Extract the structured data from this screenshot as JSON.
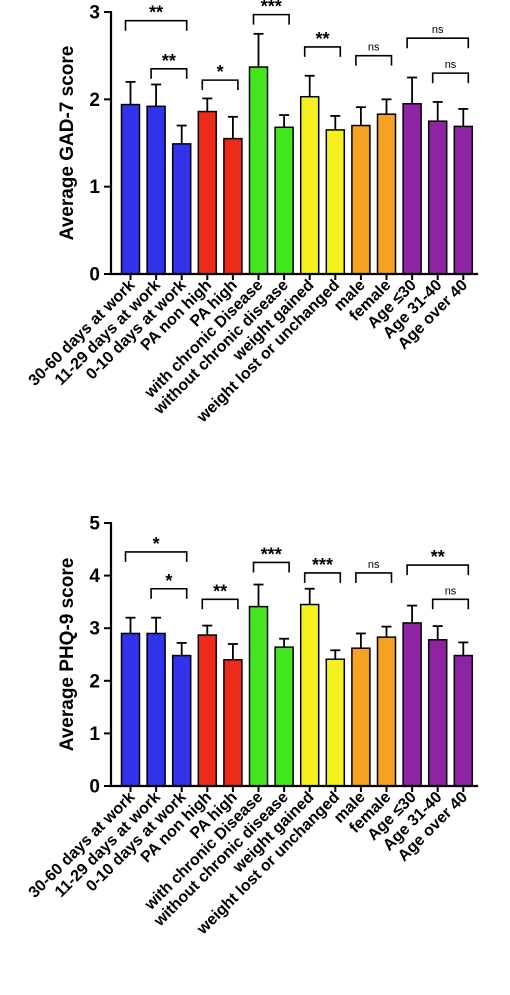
{
  "chart_data": [
    {
      "type": "bar",
      "ylabel": "Average GAD-7 score",
      "ylim": [
        0,
        3
      ],
      "yticks": [
        "0",
        "1",
        "2",
        "3"
      ],
      "categories": [
        "30-60 days at work",
        "11-29 days at work",
        "0-10 days at work",
        "PA non high",
        "PA high",
        "with chronic Disease",
        "without chronic disease",
        "weight gained",
        "weight lost or unchanged",
        "male",
        "female",
        "Age ≤30",
        "Age 31-40",
        "Age over 40"
      ],
      "values": [
        1.94,
        1.92,
        1.49,
        1.86,
        1.55,
        2.37,
        1.68,
        2.03,
        1.65,
        1.7,
        1.83,
        1.95,
        1.75,
        1.69
      ],
      "errors": [
        0.26,
        0.25,
        0.21,
        0.15,
        0.25,
        0.38,
        0.14,
        0.24,
        0.16,
        0.21,
        0.17,
        0.3,
        0.22,
        0.2
      ],
      "colors": [
        "#3333ee",
        "#3333ee",
        "#3333ee",
        "#ee2a1a",
        "#ee2a1a",
        "#44e71f",
        "#44e71f",
        "#f5f020",
        "#f5f020",
        "#f7a123",
        "#f7a123",
        "#8e24a3",
        "#8e24a3",
        "#8e24a3"
      ],
      "significance": [
        {
          "from": 0,
          "to": 2,
          "label": "**",
          "level": 2.9
        },
        {
          "from": 1,
          "to": 2,
          "label": "**",
          "level": 2.35
        },
        {
          "from": 3,
          "to": 4,
          "label": "*",
          "level": 2.22
        },
        {
          "from": 5,
          "to": 6,
          "label": "***",
          "level": 2.97
        },
        {
          "from": 7,
          "to": 8,
          "label": "**",
          "level": 2.6
        },
        {
          "from": 9,
          "to": 10,
          "label": "ns",
          "level": 2.5
        },
        {
          "from": 11,
          "to": 13,
          "label": "ns",
          "level": 2.7
        },
        {
          "from": 12,
          "to": 13,
          "label": "ns",
          "level": 2.3
        }
      ]
    },
    {
      "type": "bar",
      "ylabel": "Average PHQ-9 score",
      "ylim": [
        0,
        5
      ],
      "yticks": [
        "0",
        "1",
        "2",
        "3",
        "4",
        "5"
      ],
      "categories": [
        "30-60 days at work",
        "11-29 days at work",
        "0-10 days at work",
        "PA non high",
        "PA high",
        "with chronic Disease",
        "without chronic disease",
        "weight gained",
        "weight lost or unchanged",
        "male",
        "female",
        "Age ≤30",
        "Age 31-40",
        "Age over 40"
      ],
      "values": [
        2.9,
        2.9,
        2.48,
        2.87,
        2.4,
        3.41,
        2.64,
        3.45,
        2.41,
        2.62,
        2.83,
        3.1,
        2.78,
        2.48
      ],
      "errors": [
        0.3,
        0.3,
        0.24,
        0.18,
        0.3,
        0.42,
        0.16,
        0.3,
        0.17,
        0.28,
        0.2,
        0.33,
        0.26,
        0.25
      ],
      "colors": [
        "#3333ee",
        "#3333ee",
        "#3333ee",
        "#ee2a1a",
        "#ee2a1a",
        "#44e71f",
        "#44e71f",
        "#f5f020",
        "#f5f020",
        "#f7a123",
        "#f7a123",
        "#8e24a3",
        "#8e24a3",
        "#8e24a3"
      ],
      "significance": [
        {
          "from": 0,
          "to": 2,
          "label": "*",
          "level": 4.45
        },
        {
          "from": 1,
          "to": 2,
          "label": "*",
          "level": 3.75
        },
        {
          "from": 3,
          "to": 4,
          "label": "**",
          "level": 3.55
        },
        {
          "from": 5,
          "to": 6,
          "label": "***",
          "level": 4.25
        },
        {
          "from": 7,
          "to": 8,
          "label": "***",
          "level": 4.05
        },
        {
          "from": 9,
          "to": 10,
          "label": "ns",
          "level": 4.05
        },
        {
          "from": 11,
          "to": 13,
          "label": "**",
          "level": 4.2
        },
        {
          "from": 12,
          "to": 13,
          "label": "ns",
          "level": 3.55
        }
      ]
    }
  ]
}
